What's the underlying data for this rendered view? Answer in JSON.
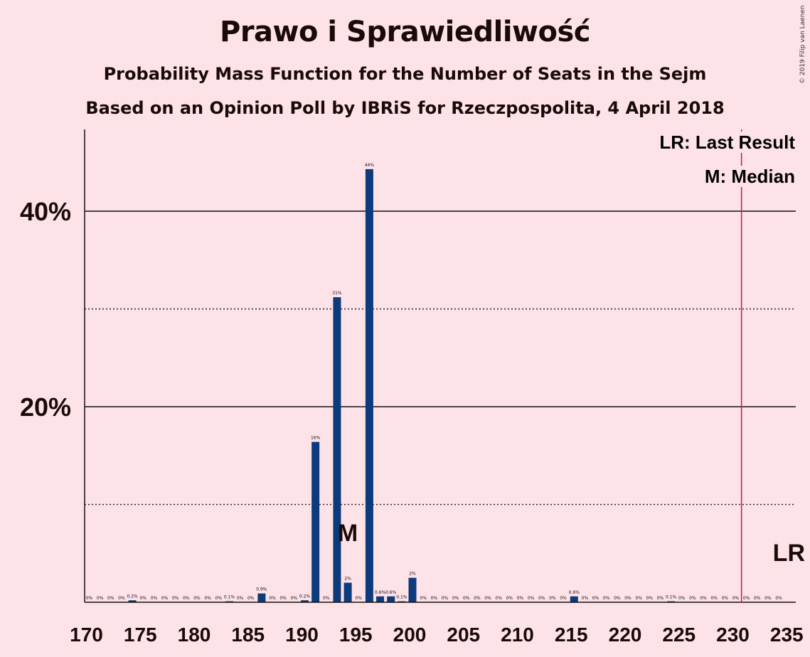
{
  "header": {
    "title": "Prawo i Sprawiedliwość",
    "subtitle": "Probability Mass Function for the Number of Seats in the Sejm",
    "subtitle2": "Based on an Opinion Poll by IBRiS for Rzeczpospolita, 4 April 2018",
    "copyright": "© 2019 Filip van Laenen"
  },
  "legend": {
    "last_result": "LR: Last Result",
    "median": "M: Median"
  },
  "colors": {
    "bar": "#0d3a7a",
    "background": "#fde3e8",
    "last_result_line": "#c0184b",
    "text": "#1a0a0a"
  },
  "chart_data": {
    "type": "bar",
    "xlabel": "",
    "ylabel": "",
    "x_ticks": [
      170,
      175,
      180,
      185,
      190,
      195,
      200,
      205,
      210,
      215,
      220,
      225,
      230,
      235
    ],
    "y_ticks": [
      "20%",
      "40%"
    ],
    "ylim": [
      0,
      48
    ],
    "grid": "solid at 20% and 40%, dotted at 10% and 30%",
    "median": 194,
    "median_label": "M",
    "last_result": 231,
    "last_result_label": "LR",
    "x": [
      170,
      171,
      172,
      173,
      174,
      175,
      176,
      177,
      178,
      179,
      180,
      181,
      182,
      183,
      184,
      185,
      186,
      187,
      188,
      189,
      190,
      191,
      192,
      193,
      194,
      195,
      196,
      197,
      198,
      199,
      200,
      201,
      202,
      203,
      204,
      205,
      206,
      207,
      208,
      209,
      210,
      211,
      212,
      213,
      214,
      215,
      216,
      217,
      218,
      219,
      220,
      221,
      222,
      223,
      224,
      225,
      226,
      227,
      228,
      229,
      230,
      231,
      232,
      233,
      234,
      235
    ],
    "values": [
      0,
      0,
      0,
      0,
      0.2,
      0,
      0,
      0,
      0,
      0,
      0,
      0,
      0,
      0.1,
      0,
      0,
      0.9,
      0,
      0,
      0,
      0.2,
      16.4,
      0,
      31.2,
      2.0,
      0,
      44.3,
      0.6,
      0.6,
      0.1,
      2.5,
      0,
      0,
      0,
      0,
      0,
      0,
      0,
      0,
      0,
      0,
      0,
      0,
      0,
      0,
      0.6,
      0,
      0,
      0,
      0,
      0,
      0,
      0,
      0,
      0.1,
      0,
      0,
      0,
      0,
      0,
      0,
      0,
      0,
      0,
      0,
      0
    ],
    "labels": [
      "0%",
      "0%",
      "0%",
      "0%",
      "0.2%",
      "0%",
      "0%",
      "0%",
      "0%",
      "0%",
      "0%",
      "0%",
      "0%",
      "0.1%",
      "0%",
      "0%",
      "0.9%",
      "0%",
      "0%",
      "0%",
      "0.2%",
      "16%",
      "0%",
      "31%",
      "2%",
      "0%",
      "44%",
      "0.6%",
      "0.6%",
      "0.1%",
      "2%",
      "0%",
      "0%",
      "0%",
      "0%",
      "0%",
      "0%",
      "0%",
      "0%",
      "0%",
      "0%",
      "0%",
      "0%",
      "0%",
      "0%",
      "0.6%",
      "0%",
      "0%",
      "0%",
      "0%",
      "0%",
      "0%",
      "0%",
      "0%",
      "0.1%",
      "0%",
      "0%",
      "0%",
      "0%",
      "0%",
      "0%",
      "0%",
      "0%",
      "0%",
      "0%",
      ""
    ]
  }
}
